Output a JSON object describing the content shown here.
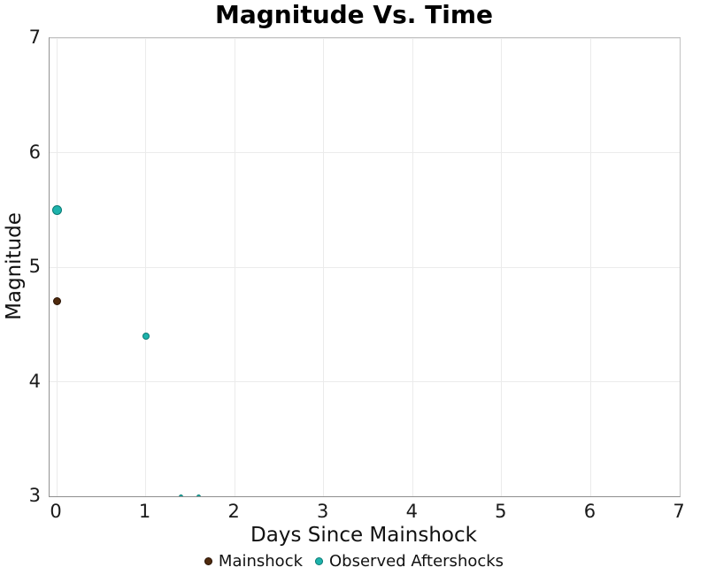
{
  "chart_data": {
    "type": "scatter",
    "title": "Magnitude Vs. Time",
    "xlabel": "Days Since Mainshock",
    "ylabel": "Magnitude",
    "x_range": [
      -0.08,
      7.0
    ],
    "y_range": [
      3,
      7
    ],
    "x_ticks": [
      0,
      1,
      2,
      3,
      4,
      5,
      6,
      7
    ],
    "y_ticks": [
      3,
      4,
      5,
      6,
      7
    ],
    "grid": true,
    "gridline_color": "#ebebeb",
    "legend_position": "bottom-center",
    "series": [
      {
        "name": "Mainshock",
        "color": "#4f2a0d",
        "edge_color": "#281204",
        "points": [
          {
            "x": 0,
            "y": 4.7,
            "size": 9
          }
        ]
      },
      {
        "name": "Observed Aftershocks",
        "color": "#1db3ac",
        "edge_color": "#0c7a74",
        "points": [
          {
            "x": 0,
            "y": 5.5,
            "size": 11
          },
          {
            "x": 1,
            "y": 4.4,
            "size": 8
          },
          {
            "x": 1.4,
            "y": 3.0,
            "size": 5
          },
          {
            "x": 1.6,
            "y": 3.0,
            "size": 5
          }
        ]
      }
    ]
  }
}
